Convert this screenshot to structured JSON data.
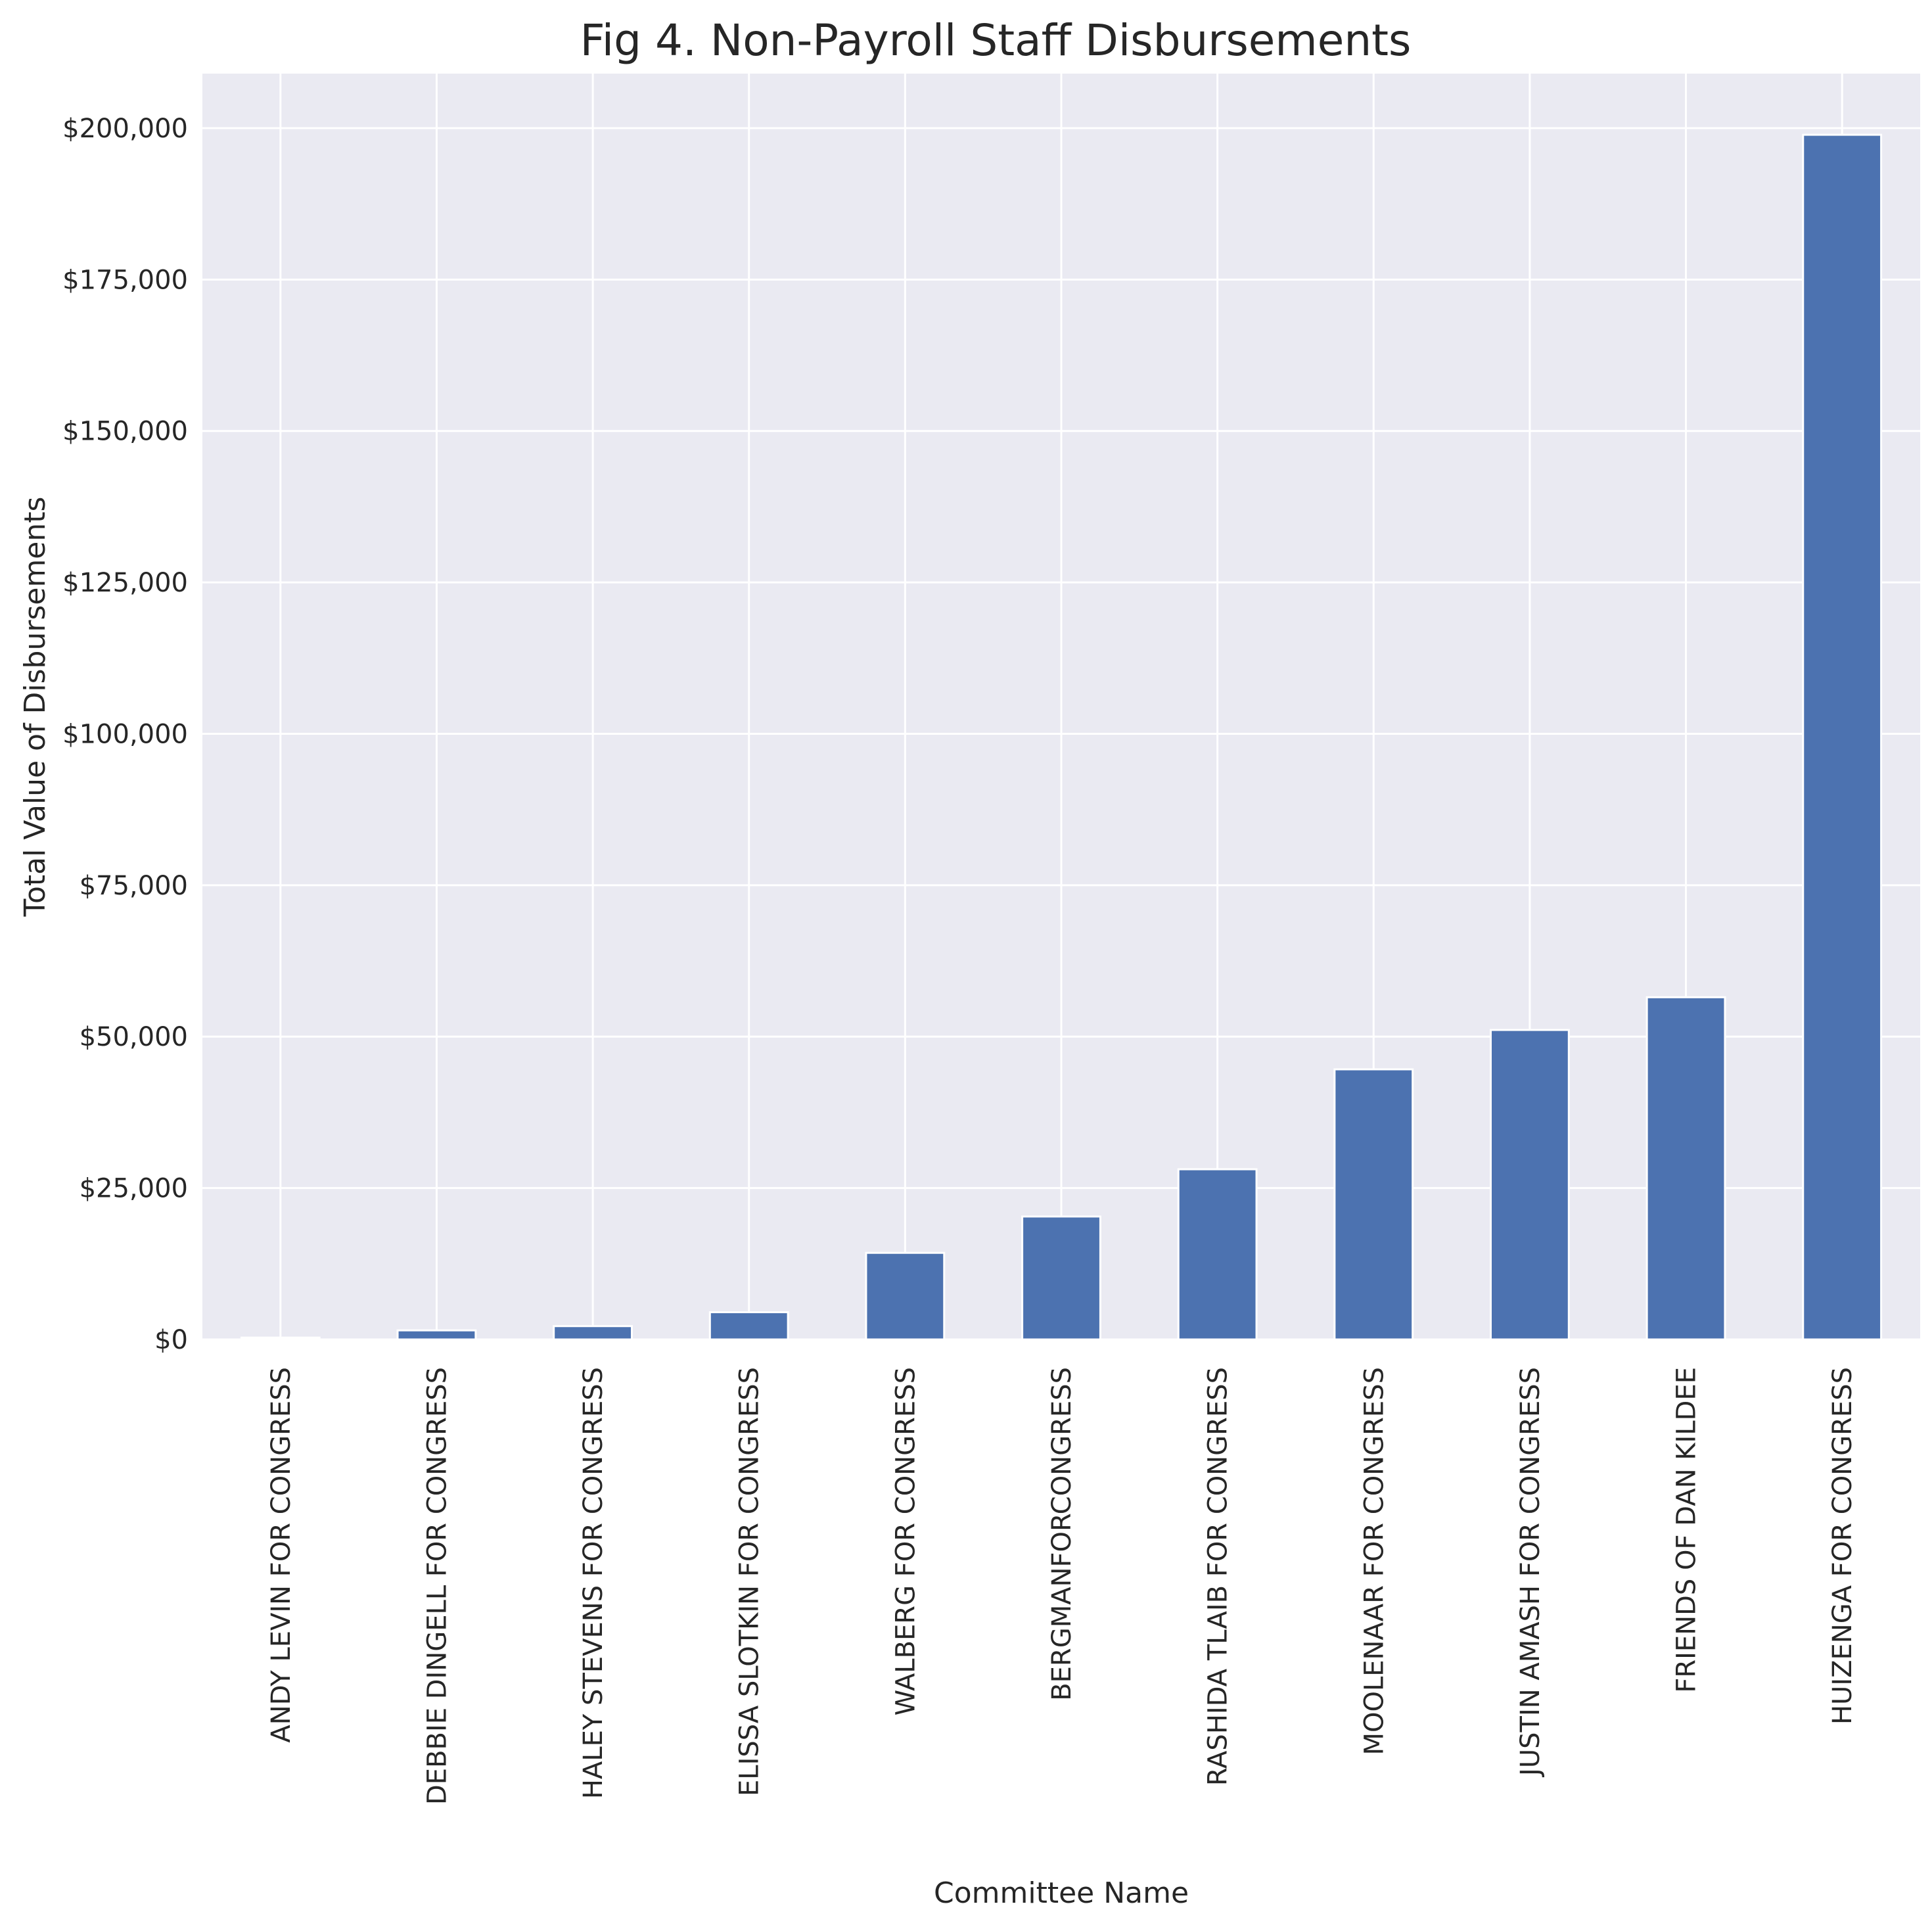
{
  "chart_data": {
    "type": "bar",
    "title": "Fig 4. Non-Payroll Staff Disbursements",
    "xlabel": "Committee Name",
    "ylabel": "Total Value of Disbursements",
    "ylim": [
      0,
      209000
    ],
    "y_ticks": [
      0,
      25000,
      50000,
      75000,
      100000,
      125000,
      150000,
      175000,
      200000
    ],
    "y_tick_labels": [
      "$0",
      "$25,000",
      "$50,000",
      "$75,000",
      "$100,000",
      "$125,000",
      "$150,000",
      "$175,000",
      "$200,000"
    ],
    "categories": [
      "ANDY LEVIN FOR CONGRESS",
      "DEBBIE DINGELL FOR CONGRESS",
      "HALEY STEVENS FOR CONGRESS",
      "ELISSA SLOTKIN FOR CONGRESS",
      "WALBERG FOR CONGRESS",
      "BERGMANFORCONGRESS",
      "RASHIDA TLAIB FOR CONGRESS",
      "MOOLENAAR FOR CONGRESS",
      "JUSTIN AMASH FOR CONGRESS",
      "FRIENDS OF DAN KILDEE",
      "HUIZENGA FOR CONGRESS"
    ],
    "values": [
      300,
      1500,
      2200,
      4500,
      14300,
      20300,
      28100,
      44600,
      51100,
      56500,
      198900
    ],
    "bar_color": "#4c72b0",
    "background_color": "#eaeaf2",
    "grid": true,
    "legend": "none"
  }
}
